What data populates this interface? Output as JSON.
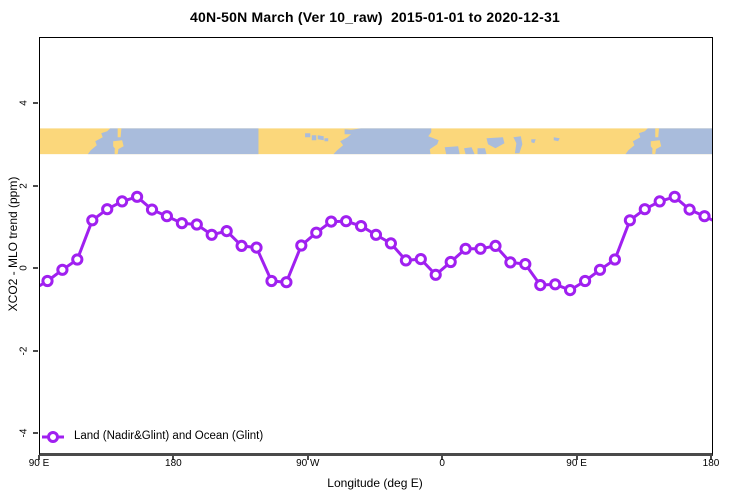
{
  "header": {
    "title": "40N-50N March (Ver 10_raw)  2015-01-01 to 2020-12-31"
  },
  "legend": {
    "label": "Land (Nadir&Glint) and Ocean (Glint)"
  },
  "chart_data": {
    "type": "line",
    "title": "40N-50N March (Ver 10_raw)  2015-01-01 to 2020-12-31",
    "xlabel": "Longitude (deg E)",
    "ylabel": "XCO2 - MLO trend (ppm)",
    "xlim": [
      90,
      540
    ],
    "ylim": [
      -4.46,
      5.6
    ],
    "grid": false,
    "legend_position": "bottom-left-inside",
    "x_ticks": [
      {
        "pos": 90,
        "label": "90 E"
      },
      {
        "pos": 180,
        "label": "180"
      },
      {
        "pos": 270,
        "label": "90 W"
      },
      {
        "pos": 360,
        "label": "0"
      },
      {
        "pos": 450,
        "label": "90 E"
      },
      {
        "pos": 540,
        "label": "180"
      }
    ],
    "y_ticks": [
      {
        "pos": -4,
        "label": "-4"
      },
      {
        "pos": -2,
        "label": "-2"
      },
      {
        "pos": 0,
        "label": "0"
      },
      {
        "pos": 2,
        "label": "2"
      },
      {
        "pos": 4,
        "label": "4"
      }
    ],
    "series": [
      {
        "name": "Land (Nadir&Glint) and Ocean (Glint)",
        "color": "#A020F0",
        "marker": "open-circle",
        "x": [
          95,
          105,
          115,
          125,
          135,
          145,
          155,
          165,
          175,
          185,
          195,
          205,
          215,
          225,
          235,
          245,
          255,
          265,
          275,
          285,
          295,
          305,
          315,
          325,
          335,
          345,
          355,
          365,
          375,
          385,
          395,
          405,
          415,
          425,
          435,
          445,
          455,
          465,
          475,
          485,
          495,
          505,
          515,
          525,
          535
        ],
        "y": [
          -0.29,
          -0.02,
          0.23,
          1.18,
          1.45,
          1.64,
          1.75,
          1.44,
          1.28,
          1.11,
          1.08,
          0.83,
          0.92,
          0.56,
          0.52,
          -0.29,
          -0.32,
          0.57,
          0.88,
          1.15,
          1.16,
          1.04,
          0.83,
          0.62,
          0.21,
          0.24,
          -0.14,
          0.17,
          0.49,
          0.49,
          0.56,
          0.16,
          0.12,
          -0.39,
          -0.37,
          -0.51,
          -0.29,
          -0.02,
          0.23,
          1.18,
          1.45,
          1.64,
          1.75,
          1.44,
          1.28
        ],
        "edge_left": {
          "x": 90,
          "y": -0.4
        },
        "edge_right": {
          "x": 540,
          "y": 1.19
        }
      }
    ],
    "map_band": {
      "description": "world coastline strip for 40N-50N latitude band",
      "y_range": [
        2.78,
        3.41
      ],
      "land_color": "#FBD77B",
      "ocean_color": "#A9BCDC",
      "oceans": [
        [
          [
            137,
            0
          ],
          [
            236.3,
            0
          ],
          [
            236.3,
            26
          ],
          [
            122,
            26
          ],
          [
            124,
            22
          ],
          [
            128,
            17
          ],
          [
            127,
            13
          ],
          [
            132,
            9
          ],
          [
            131,
            5
          ],
          [
            135,
            3
          ]
        ],
        [
          [
            305,
            0
          ],
          [
            352,
            0
          ],
          [
            352,
            4
          ],
          [
            350,
            8
          ],
          [
            357,
            12
          ],
          [
            356,
            16
          ],
          [
            351,
            21
          ],
          [
            351.5,
            26
          ],
          [
            286.5,
            26
          ],
          [
            289,
            22
          ],
          [
            293,
            17
          ],
          [
            291,
            13
          ],
          [
            296,
            9
          ],
          [
            299,
            5
          ],
          [
            297,
            2
          ]
        ],
        [
          [
            497,
            0
          ],
          [
            540,
            0
          ],
          [
            540,
            26
          ],
          [
            482,
            26
          ],
          [
            484,
            22
          ],
          [
            488,
            17
          ],
          [
            487,
            13
          ],
          [
            492,
            9
          ],
          [
            491,
            5
          ],
          [
            495,
            3
          ]
        ]
      ],
      "lakes": [
        [
          [
            267.5,
            5
          ],
          [
            271,
            5
          ],
          [
            271,
            9
          ],
          [
            267.5,
            9
          ]
        ],
        [
          [
            272,
            7
          ],
          [
            275,
            7
          ],
          [
            275,
            12
          ],
          [
            272,
            12
          ]
        ],
        [
          [
            276,
            7
          ],
          [
            280,
            8
          ],
          [
            280,
            12
          ],
          [
            276,
            11
          ]
        ],
        [
          [
            280.5,
            10
          ],
          [
            283,
            10
          ],
          [
            283,
            13
          ],
          [
            280.5,
            13
          ]
        ],
        [
          [
            294,
            1
          ],
          [
            301,
            2
          ],
          [
            299,
            6
          ],
          [
            294,
            6
          ]
        ],
        [
          [
            361,
            19
          ],
          [
            370,
            18
          ],
          [
            371,
            26
          ],
          [
            362,
            26
          ]
        ],
        [
          [
            374,
            20
          ],
          [
            379,
            19
          ],
          [
            381,
            26
          ],
          [
            375,
            26
          ]
        ],
        [
          [
            383,
            20
          ],
          [
            388,
            20
          ],
          [
            389,
            26
          ],
          [
            383,
            26
          ]
        ],
        [
          [
            389,
            10
          ],
          [
            400,
            9
          ],
          [
            401,
            15
          ],
          [
            395,
            20
          ],
          [
            390,
            16
          ]
        ],
        [
          [
            407,
            9
          ],
          [
            412,
            8
          ],
          [
            413,
            16
          ],
          [
            411,
            25
          ],
          [
            408,
            25
          ],
          [
            409,
            15
          ]
        ],
        [
          [
            419,
            11
          ],
          [
            422,
            11
          ],
          [
            421,
            15
          ],
          [
            419,
            14
          ]
        ],
        [
          [
            434,
            9
          ],
          [
            438,
            10
          ],
          [
            437,
            13
          ],
          [
            434,
            12
          ]
        ]
      ],
      "islands": [
        [
          [
            142,
            0
          ],
          [
            144.5,
            0
          ],
          [
            144,
            9
          ],
          [
            142,
            9
          ]
        ],
        [
          [
            139,
            13
          ],
          [
            145,
            12
          ],
          [
            146,
            18
          ],
          [
            141,
            22
          ],
          [
            139,
            18
          ]
        ],
        [
          [
            140,
            21
          ],
          [
            142.5,
            21
          ],
          [
            142,
            26
          ],
          [
            140,
            26
          ]
        ],
        [
          [
            502,
            0
          ],
          [
            504.5,
            0
          ],
          [
            504,
            9
          ],
          [
            502,
            9
          ]
        ],
        [
          [
            499,
            13
          ],
          [
            505,
            12
          ],
          [
            506,
            18
          ],
          [
            501,
            22
          ],
          [
            499,
            18
          ]
        ],
        [
          [
            500,
            21
          ],
          [
            502.5,
            21
          ],
          [
            502,
            26
          ],
          [
            500,
            26
          ]
        ]
      ]
    }
  }
}
